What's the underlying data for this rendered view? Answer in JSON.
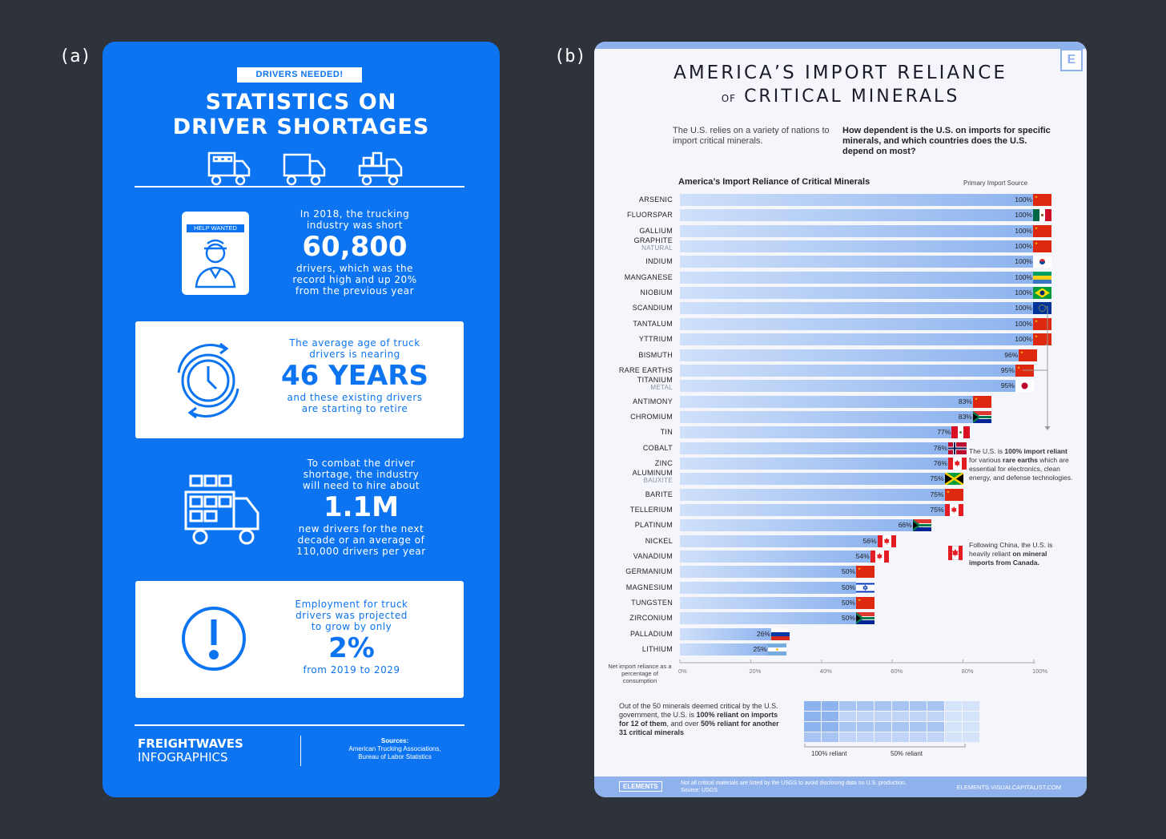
{
  "panel_a": {
    "label": "(a)",
    "badge": "DRIVERS NEEDED!",
    "title_line1": "STATISTICS ON",
    "title_line2": "DRIVER SHORTAGES",
    "help_wanted": "HELP WANTED",
    "stat1": {
      "line1": "In 2018, the trucking",
      "line2": "industry was short",
      "big": "60,800",
      "line3": "drivers, which was the",
      "line4": "record high and up 20%",
      "line5": "from the previous year"
    },
    "stat2": {
      "line1": "The average age of truck",
      "line2": "drivers is nearing",
      "big": "46 YEARS",
      "line3": "and these existing drivers",
      "line4": "are starting to retire"
    },
    "stat3": {
      "line1": "To combat the driver",
      "line2": "shortage, the industry",
      "line3": "will need to hire about",
      "big": "1.1M",
      "line4": "new drivers for the next",
      "line5": "decade or an average of",
      "line6": "110,000 drivers per year"
    },
    "stat4": {
      "line1": "Employment for truck",
      "line2": "drivers was projected",
      "line3": "to grow by only",
      "big": "2%",
      "line4": "from 2019 to 2029"
    },
    "brand_line1": "FREIGHTWAVES",
    "brand_line2": "INFOGRAPHICS",
    "sources_title": "Sources:",
    "sources_line1": "American Trucking Associations,",
    "sources_line2": "Bureau of Labor Statistics",
    "icons": [
      "truck-icon",
      "clock-icon",
      "exclamation-icon"
    ],
    "colors": {
      "background": "#0c74f0",
      "text": "#ffffff"
    }
  },
  "panel_b": {
    "label": "(b)",
    "logo_letter": "E",
    "title_line1": "AMERICA’S IMPORT RELIANCE",
    "title_of": "OF",
    "title_line2": "CRITICAL MINERALS",
    "intro_left": "The U.S. relies on a variety of nations to import critical minerals.",
    "intro_right": "How dependent is the U.S. on imports for specific minerals, and which countries does the U.S. depend on most?",
    "chart_title": "America’s Import Reliance of Critical Minerals",
    "primary_source": "Primary Import Source",
    "x_note": "Net import reliance as a percentage of consumption",
    "annotation_1a": "The U.S. is ",
    "annotation_1b": "100% import reliant",
    "annotation_1c": " for various ",
    "annotation_1d": "rare earths",
    "annotation_1e": " which are essential for electronics, clean energy, and defense technologies.",
    "annotation_2a": "Following China, the U.S. is heavily reliant ",
    "annotation_2b": "on mineral imports from Canada.",
    "summary_a": "Out of the 50 minerals deemed critical by the U.S. government, the U.S. is ",
    "summary_b": "100% reliant on imports for 12 of them",
    "summary_c": ", and over ",
    "summary_d": "50% reliant for another 31 critical minerals",
    "legend_100": "100% reliant",
    "legend_50": "50% reliant",
    "footer_brand": "ELEMENTS",
    "footer_note1": "Not all critical materials are listed by the USGS to avoid disclosing data on U.S. production.",
    "footer_note2": "Source: USGS",
    "footer_url": "ELEMENTS.VISUALCAPITALIST.COM",
    "colors": {
      "bar_start": "#cfe0fa",
      "bar_end": "#8db3ee",
      "accent": "#8fb2ec"
    }
  },
  "chart_data": {
    "type": "bar",
    "title": "America’s Import Reliance of Critical Minerals",
    "xlabel": "Net import reliance as a percentage of consumption",
    "x_ticks": [
      "0%",
      "20%",
      "40%",
      "60%",
      "80%",
      "100%"
    ],
    "xlim": [
      0,
      100
    ],
    "series": [
      {
        "values": [
          {
            "name": "ARSENIC",
            "value": 100,
            "source": "China"
          },
          {
            "name": "FLUORSPAR",
            "value": 100,
            "source": "Mexico"
          },
          {
            "name": "GALLIUM",
            "value": 100,
            "source": "China"
          },
          {
            "name": "GRAPHITE",
            "sub": "NATURAL",
            "value": 100,
            "source": "China"
          },
          {
            "name": "INDIUM",
            "value": 100,
            "source": "South Korea"
          },
          {
            "name": "MANGANESE",
            "value": 100,
            "source": "Gabon"
          },
          {
            "name": "NIOBIUM",
            "value": 100,
            "source": "Brazil"
          },
          {
            "name": "SCANDIUM",
            "value": 100,
            "source": "European Union"
          },
          {
            "name": "TANTALUM",
            "value": 100,
            "source": "China"
          },
          {
            "name": "YTTRIUM",
            "value": 100,
            "source": "China"
          },
          {
            "name": "BISMUTH",
            "value": 96,
            "source": "China"
          },
          {
            "name": "RARE EARTHS",
            "value": 95,
            "source": "China"
          },
          {
            "name": "TITANIUM",
            "sub": "METAL",
            "value": 95,
            "source": "Japan"
          },
          {
            "name": "ANTIMONY",
            "value": 83,
            "source": "China"
          },
          {
            "name": "CHROMIUM",
            "value": 83,
            "source": "South Africa"
          },
          {
            "name": "TIN",
            "value": 77,
            "source": "Peru"
          },
          {
            "name": "COBALT",
            "value": 76,
            "source": "Norway"
          },
          {
            "name": "ZINC",
            "value": 76,
            "source": "Canada"
          },
          {
            "name": "ALUMINUM",
            "sub": "BAUXITE",
            "value": 75,
            "source": "Jamaica"
          },
          {
            "name": "BARITE",
            "value": 75,
            "source": "China"
          },
          {
            "name": "TELLERIUM",
            "value": 75,
            "source": "Canada"
          },
          {
            "name": "PLATINUM",
            "value": 66,
            "source": "South Africa"
          },
          {
            "name": "NICKEL",
            "value": 56,
            "source": "Canada"
          },
          {
            "name": "VANADIUM",
            "value": 54,
            "source": "Canada"
          },
          {
            "name": "GERMANIUM",
            "value": 50,
            "source": "China"
          },
          {
            "name": "MAGNESIUM",
            "value": 50,
            "source": "Israel"
          },
          {
            "name": "TUNGSTEN",
            "value": 50,
            "source": "China"
          },
          {
            "name": "ZIRCONIUM",
            "value": 50,
            "source": "South Africa"
          },
          {
            "name": "PALLADIUM",
            "value": 26,
            "source": "Russia"
          },
          {
            "name": "LITHIUM",
            "value": 25,
            "source": "Argentina"
          }
        ]
      }
    ]
  }
}
